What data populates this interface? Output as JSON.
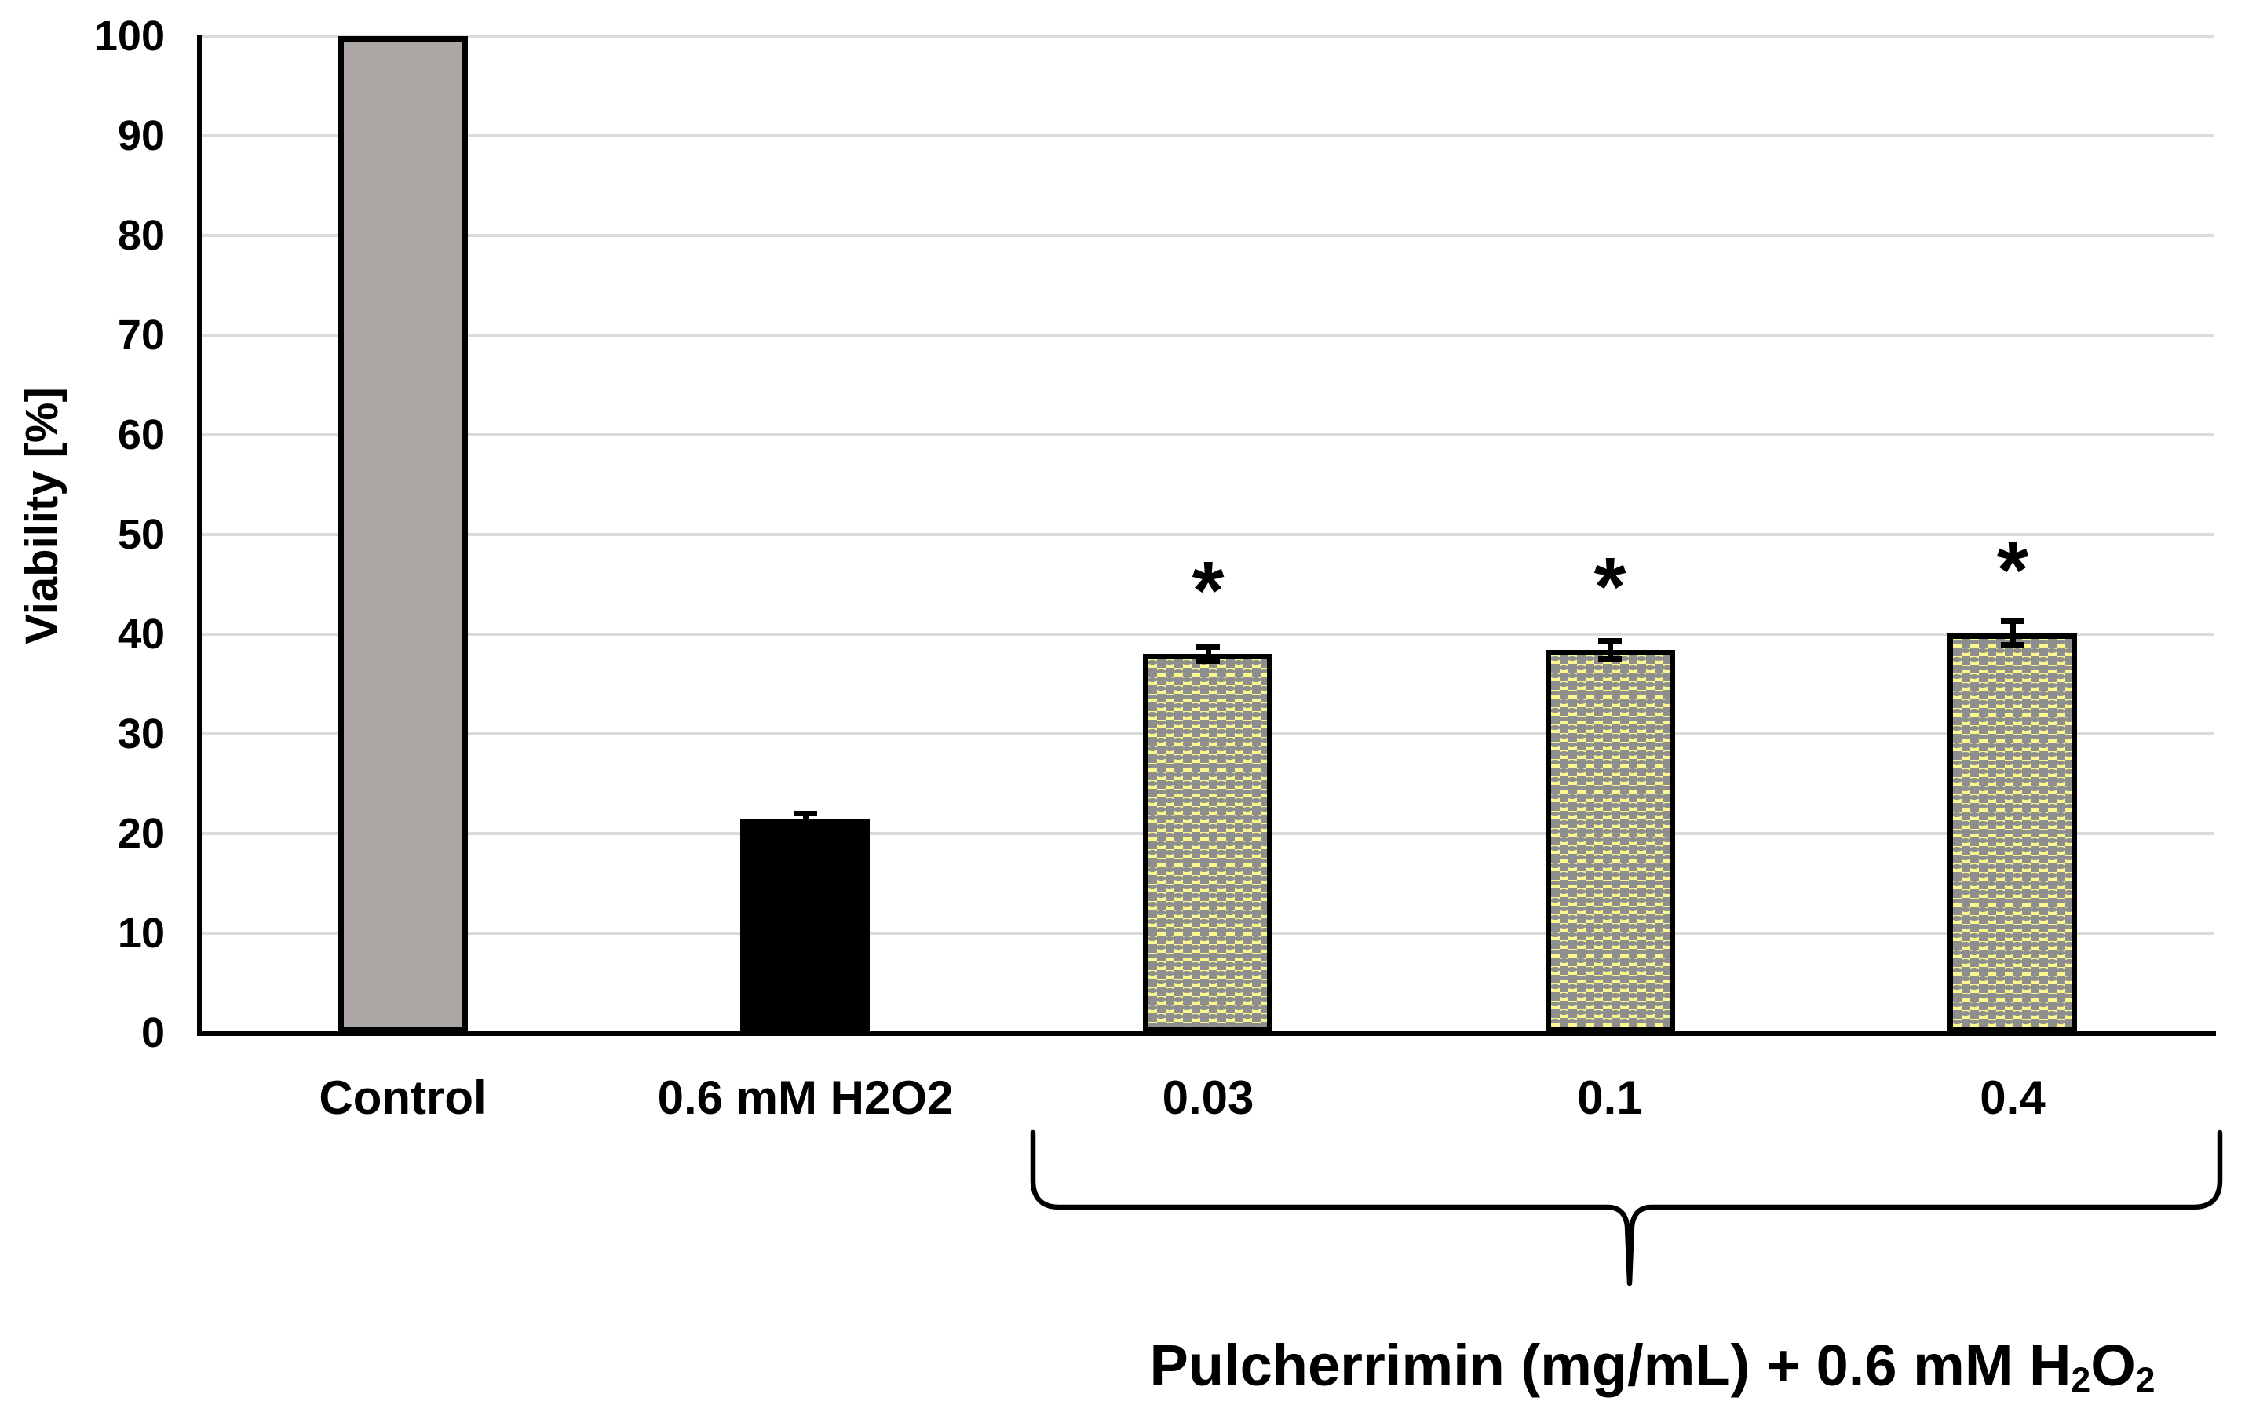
{
  "figure": {
    "background": "#FFFFFF",
    "kind": "column chart with error bars and significance asterisks"
  },
  "chart_data": {
    "type": "bar",
    "title": "",
    "xlabel": "",
    "ylabel": "Viability [%]",
    "ylim": [
      0,
      100
    ],
    "ytick_step": 10,
    "yticks": [
      0,
      10,
      20,
      30,
      40,
      50,
      60,
      70,
      80,
      90,
      100
    ],
    "grid": true,
    "legend": "none",
    "categories": [
      "Control",
      "0.6 mM H2O2",
      "0.03",
      "0.1",
      "0.4"
    ],
    "values": [
      100,
      21.5,
      38.0,
      38.4,
      40.1
    ],
    "errors": [
      0,
      0.5,
      0.7,
      0.9,
      1.2
    ],
    "significance": [
      "",
      "",
      "*",
      "*",
      "*"
    ],
    "bar_styles": [
      "solid-gray",
      "solid-black",
      "yellow-checker",
      "yellow-checker",
      "yellow-checker"
    ],
    "group_annotation": {
      "covers": [
        "0.03",
        "0.1",
        "0.4"
      ],
      "label": "Pulcherrimin (mg/mL) + 0.6 mM H₂O₂",
      "label_parts": {
        "p1": "Pulcherrimin (mg/mL) + 0.6 mM H",
        "s1": "2",
        "p2": "O",
        "s2": "2"
      }
    },
    "colors": {
      "bar_gray": "#ACA7A4",
      "bar_black": "#000000",
      "pattern_yellow": "#FAF88C",
      "pattern_gray": "#8E8E8E",
      "gridline": "#DBDBDB",
      "axis": "#000000",
      "text": "#000000"
    }
  }
}
